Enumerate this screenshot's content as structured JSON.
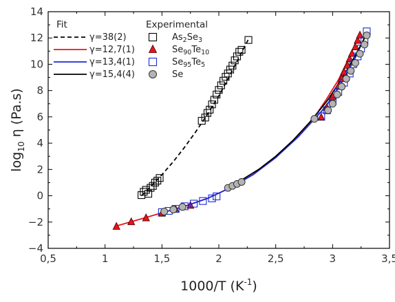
{
  "chart_data": {
    "type": "scatter",
    "title": "",
    "xlabel": "1000/T (K",
    "xlabel_sup": "-1",
    "xlabel_close": ")",
    "ylabel": "log",
    "ylabel_sub": "10",
    "ylabel_rest": " η (Pa.s)",
    "xlim": [
      0.5,
      3.5
    ],
    "ylim": [
      -4,
      14
    ],
    "xticks": [
      0.5,
      1.0,
      1.5,
      2.0,
      2.5,
      3.0,
      3.5
    ],
    "xtick_labels": [
      "0,5",
      "1",
      "1,5",
      "2",
      "2,5",
      "3",
      "3,5"
    ],
    "yticks": [
      -4,
      -2,
      0,
      2,
      4,
      6,
      8,
      10,
      12,
      14
    ],
    "ytick_labels": [
      "−4",
      "−2",
      "0",
      "2",
      "4",
      "6",
      "8",
      "10",
      "12",
      "14"
    ],
    "grid": false,
    "legend_fit_title": "Fit",
    "legend_exp_title": "Experimental",
    "fits": [
      {
        "label": "γ=38(2)",
        "color": "#000000",
        "dash": "6,4",
        "x": [
          1.32,
          1.4,
          1.5,
          1.6,
          1.7,
          1.8,
          1.9,
          2.0,
          2.1,
          2.2,
          2.26
        ],
        "y": [
          0.0,
          0.7,
          1.6,
          2.6,
          3.7,
          4.9,
          6.2,
          7.6,
          9.2,
          10.9,
          11.9
        ]
      },
      {
        "label": "γ=12,7(1)",
        "color": "#e8141c",
        "dash": "",
        "x": [
          1.1,
          1.3,
          1.5,
          1.7,
          1.9,
          2.1,
          2.3,
          2.5,
          2.7,
          2.85,
          2.95,
          3.05,
          3.15,
          3.22
        ],
        "y": [
          -2.3,
          -1.8,
          -1.3,
          -0.8,
          -0.2,
          0.6,
          1.6,
          2.9,
          4.6,
          6.1,
          7.4,
          8.8,
          10.6,
          12.0
        ]
      },
      {
        "label": "γ=13,4(1)",
        "color": "#1a2ad6",
        "dash": "",
        "x": [
          1.5,
          1.7,
          1.9,
          2.1,
          2.3,
          2.5,
          2.7,
          2.9,
          3.0,
          3.1,
          3.2,
          3.3
        ],
        "y": [
          -1.3,
          -0.8,
          -0.2,
          0.6,
          1.6,
          2.9,
          4.5,
          6.4,
          7.5,
          8.9,
          10.5,
          12.4
        ]
      },
      {
        "label": "γ=15,4(4)",
        "color": "#000000",
        "dash": "",
        "x": [
          2.05,
          2.2,
          2.35,
          2.5,
          2.65,
          2.8,
          2.95,
          3.05,
          3.15,
          3.25,
          3.3
        ],
        "y": [
          0.6,
          1.2,
          2.0,
          3.0,
          4.2,
          5.6,
          7.2,
          8.5,
          9.9,
          11.5,
          12.3
        ]
      }
    ],
    "series": [
      {
        "name_main": "As",
        "name_sub1": "2",
        "name_mid": "Se",
        "name_sub2": "3",
        "name_end": "",
        "marker": "square",
        "fill": "none",
        "stroke": "#000000",
        "points": [
          [
            1.32,
            0.05
          ],
          [
            1.34,
            0.3
          ],
          [
            1.36,
            0.45
          ],
          [
            1.38,
            0.15
          ],
          [
            1.4,
            0.6
          ],
          [
            1.42,
            0.75
          ],
          [
            1.44,
            1.0
          ],
          [
            1.46,
            1.15
          ],
          [
            1.48,
            1.35
          ],
          [
            1.85,
            5.7
          ],
          [
            1.88,
            5.95
          ],
          [
            1.9,
            6.3
          ],
          [
            1.92,
            6.55
          ],
          [
            1.94,
            6.95
          ],
          [
            1.96,
            7.3
          ],
          [
            1.98,
            7.7
          ],
          [
            2.0,
            8.05
          ],
          [
            2.02,
            8.4
          ],
          [
            2.04,
            8.75
          ],
          [
            2.06,
            9.05
          ],
          [
            2.08,
            9.3
          ],
          [
            2.1,
            9.6
          ],
          [
            2.12,
            9.9
          ],
          [
            2.14,
            10.3
          ],
          [
            2.16,
            10.6
          ],
          [
            2.18,
            10.95
          ],
          [
            2.2,
            11.1
          ],
          [
            2.26,
            11.85
          ]
        ]
      },
      {
        "name_main": "Se",
        "name_sub1": "90",
        "name_mid": "Te",
        "name_sub2": "10",
        "name_end": "",
        "marker": "triangle",
        "fill": "#e8141c",
        "stroke": "#3a0000",
        "points": [
          [
            1.1,
            -2.35
          ],
          [
            1.23,
            -2.0
          ],
          [
            1.36,
            -1.7
          ],
          [
            1.5,
            -1.35
          ],
          [
            1.62,
            -1.05
          ],
          [
            1.75,
            -0.75
          ],
          [
            2.9,
            5.95
          ],
          [
            2.95,
            6.7
          ],
          [
            3.0,
            7.5
          ],
          [
            3.05,
            8.3
          ],
          [
            3.08,
            8.9
          ],
          [
            3.1,
            9.4
          ],
          [
            3.13,
            9.9
          ],
          [
            3.15,
            10.4
          ],
          [
            3.17,
            10.8
          ],
          [
            3.2,
            11.3
          ],
          [
            3.22,
            11.8
          ],
          [
            3.24,
            12.2
          ]
        ]
      },
      {
        "name_main": "Se",
        "name_sub1": "95",
        "name_mid": "Te",
        "name_sub2": "5",
        "name_end": "",
        "marker": "square",
        "fill": "none",
        "stroke": "#1a2ad6",
        "points": [
          [
            1.5,
            -1.25
          ],
          [
            1.56,
            -1.15
          ],
          [
            1.62,
            -1.0
          ],
          [
            1.7,
            -0.8
          ],
          [
            1.78,
            -0.6
          ],
          [
            1.86,
            -0.4
          ],
          [
            1.94,
            -0.2
          ],
          [
            1.98,
            -0.05
          ],
          [
            2.9,
            6.05
          ],
          [
            2.95,
            6.5
          ],
          [
            3.0,
            7.2
          ],
          [
            3.05,
            7.9
          ],
          [
            3.1,
            8.6
          ],
          [
            3.15,
            9.3
          ],
          [
            3.18,
            10.0
          ],
          [
            3.22,
            10.6
          ],
          [
            3.25,
            11.2
          ],
          [
            3.28,
            11.8
          ],
          [
            3.3,
            12.5
          ]
        ]
      },
      {
        "name_main": "Se",
        "name_sub1": "",
        "name_mid": "",
        "name_sub2": "",
        "name_end": "",
        "marker": "circle",
        "fill": "#b4b4b4",
        "stroke": "#333333",
        "points": [
          [
            1.52,
            -1.2
          ],
          [
            1.6,
            -1.05
          ],
          [
            1.68,
            -0.85
          ],
          [
            2.08,
            0.6
          ],
          [
            2.12,
            0.75
          ],
          [
            2.16,
            0.9
          ],
          [
            2.2,
            1.05
          ],
          [
            2.84,
            5.85
          ],
          [
            2.96,
            6.5
          ],
          [
            3.0,
            7.0
          ],
          [
            3.04,
            7.7
          ],
          [
            3.08,
            8.3
          ],
          [
            3.12,
            8.9
          ],
          [
            3.16,
            9.5
          ],
          [
            3.2,
            10.1
          ],
          [
            3.24,
            10.8
          ],
          [
            3.28,
            11.5
          ],
          [
            3.3,
            12.2
          ]
        ]
      }
    ]
  }
}
